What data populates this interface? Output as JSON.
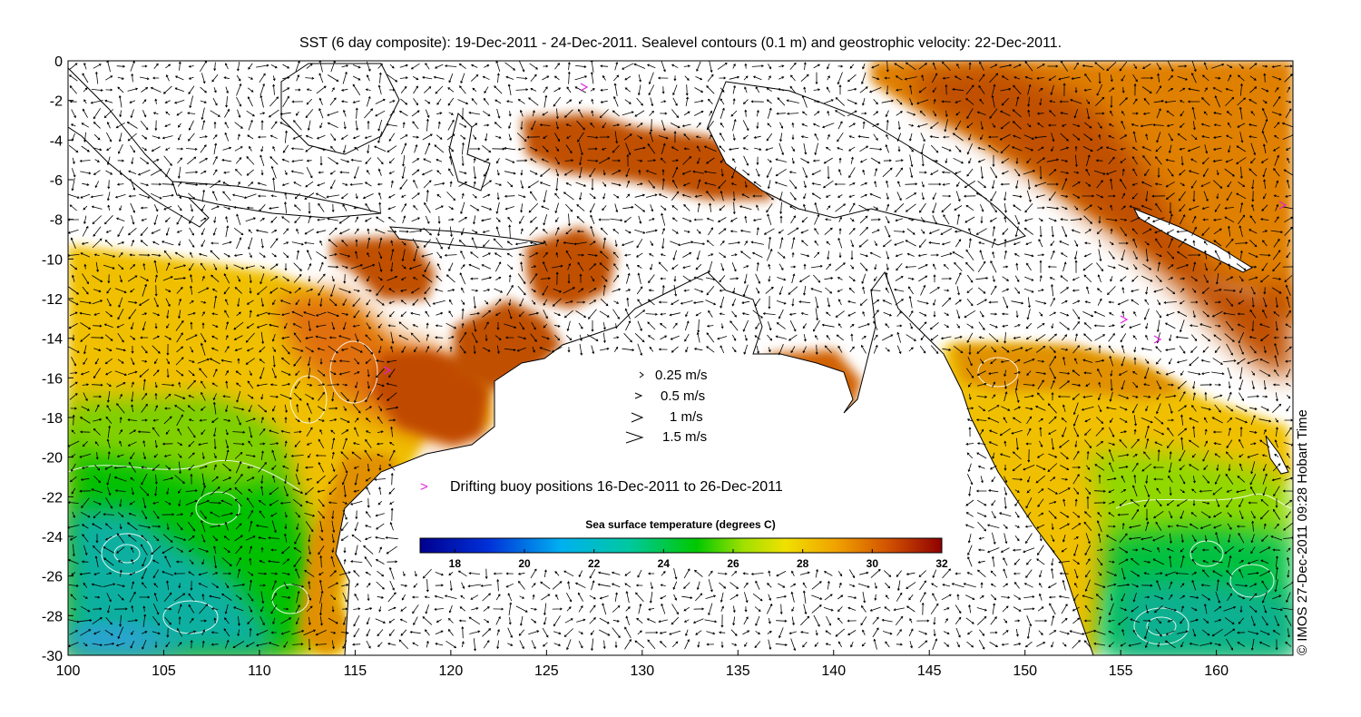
{
  "title": "SST (6 day composite): 19-Dec-2011 - 24-Dec-2011. Sealevel contours (0.1 m) and geostrophic velocity: 22-Dec-2011.",
  "axes": {
    "x_ticks": [
      "100",
      "105",
      "110",
      "115",
      "120",
      "125",
      "130",
      "135",
      "140",
      "145",
      "150",
      "155",
      "160"
    ],
    "y_ticks": [
      "0",
      "-2",
      "-4",
      "-6",
      "-8",
      "-10",
      "-12",
      "-14",
      "-16",
      "-18",
      "-20",
      "-22",
      "-24",
      "-26",
      "-28",
      "-30"
    ]
  },
  "velocity_legend": [
    {
      "label": "0.25 m/s",
      "speed": 0.25
    },
    {
      "label": "0.5 m/s",
      "speed": 0.5
    },
    {
      "label": "1 m/s",
      "speed": 1
    },
    {
      "label": "1.5 m/s",
      "speed": 1.5
    }
  ],
  "buoy_legend": {
    "symbol": ">",
    "label": "Drifting buoy positions 16-Dec-2011 to 26-Dec-2011",
    "color": "#e020e0"
  },
  "colorbar": {
    "title": "Sea surface temperature (degrees C)",
    "min": 17,
    "max": 32,
    "ticks": [
      "18",
      "20",
      "22",
      "24",
      "26",
      "28",
      "30",
      "32"
    ]
  },
  "credit": "© IMOS 27-Dec-2011 09:28 Hobart Time",
  "colors": {
    "sst_cold": "#00008f",
    "sst_mid_blue": "#00b0f0",
    "sst_green": "#00c800",
    "sst_yellow": "#f0e000",
    "sst_orange": "#f0a000",
    "sst_hot": "#900000",
    "land": "#ffffff",
    "coast": "#000000"
  },
  "chart_data": {
    "type": "heatmap",
    "title": "SST (6 day composite): 19-Dec-2011 - 24-Dec-2011. Sealevel contours (0.1 m) and geostrophic velocity: 22-Dec-2011.",
    "xlim": [
      100,
      164
    ],
    "ylim": [
      -30,
      0
    ],
    "colorbar_range": [
      17,
      32
    ],
    "colorbar_label": "Sea surface temperature (degrees C)"
  }
}
